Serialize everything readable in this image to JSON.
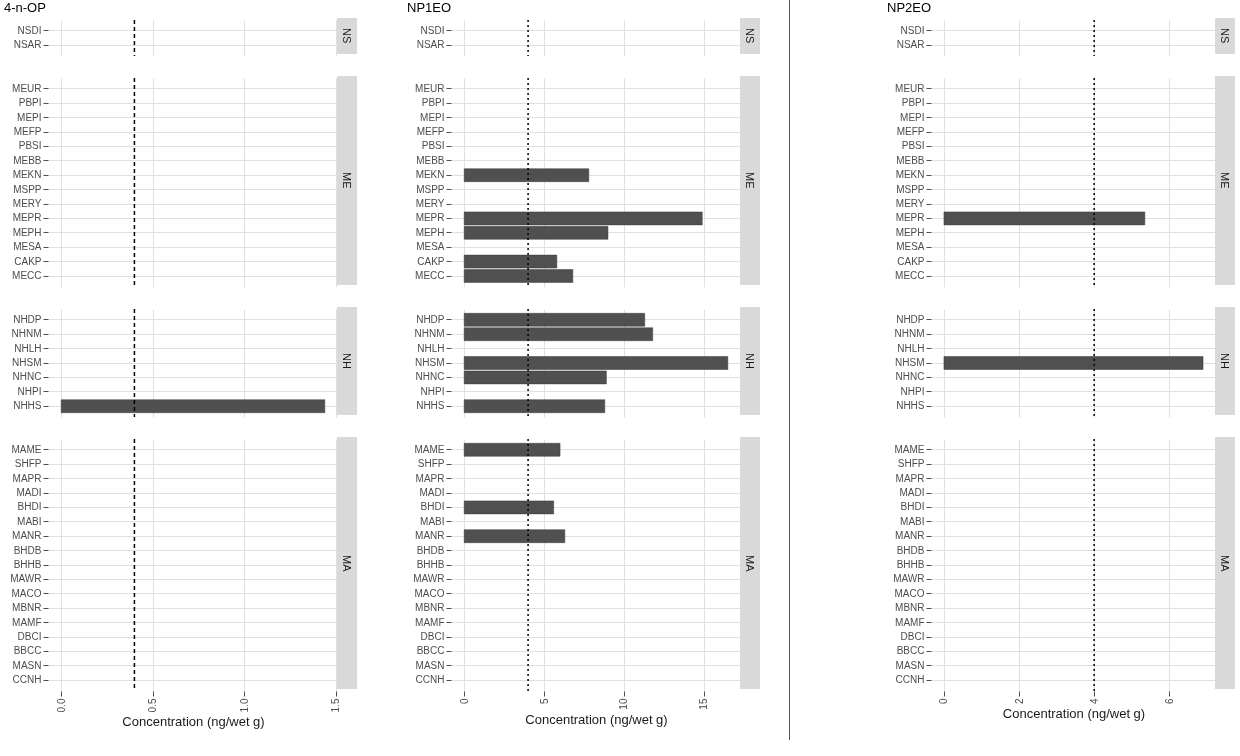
{
  "chart_data": [
    {
      "type": "bar",
      "orientation": "horizontal",
      "title": "4-n-OP",
      "categories": [
        "NSDI",
        "NSAR"
      ],
      "values": [
        null,
        null
      ],
      "color": "#505050",
      "xlim": [
        -0.072,
        1.512
      ],
      "xticks": [
        0,
        0.5,
        1,
        1.5
      ],
      "ref_lines": [
        {
          "axis": "x",
          "value": 0.4,
          "line_style": "dashed"
        }
      ],
      "grid": true,
      "tick_labels": "y",
      "annotations": [
        "NS"
      ]
    },
    {
      "type": "bar",
      "orientation": "horizontal",
      "categories": [
        "MEUR",
        "PBPI",
        "MEPI",
        "MEFP",
        "PBSI",
        "MEBB",
        "MEKN",
        "MSPP",
        "MERY",
        "MEPR",
        "MEPH",
        "MESA",
        "CAKP",
        "MECC"
      ],
      "values": [
        null,
        null,
        null,
        null,
        null,
        null,
        null,
        null,
        null,
        null,
        null,
        null,
        null,
        null
      ],
      "color": "#505050",
      "xlim": [
        -0.072,
        1.512
      ],
      "xticks": [
        0,
        0.5,
        1,
        1.5
      ],
      "ref_lines": [
        {
          "axis": "x",
          "value": 0.4,
          "line_style": "dashed"
        }
      ],
      "grid": true,
      "tick_labels": "y",
      "annotations": [
        "ME"
      ]
    },
    {
      "type": "bar",
      "orientation": "horizontal",
      "categories": [
        "NHDP",
        "NHNM",
        "NHLH",
        "NHSM",
        "NHNC",
        "NHPI",
        "NHHS"
      ],
      "values": [
        null,
        null,
        null,
        null,
        null,
        null,
        1.44
      ],
      "color": "#505050",
      "xlim": [
        -0.072,
        1.512
      ],
      "xticks": [
        0,
        0.5,
        1,
        1.5
      ],
      "ref_lines": [
        {
          "axis": "x",
          "value": 0.4,
          "line_style": "dashed"
        }
      ],
      "grid": true,
      "tick_labels": "y",
      "annotations": [
        "NH"
      ]
    },
    {
      "type": "bar",
      "orientation": "horizontal",
      "xlabel": "Concentration (ng/wet g)",
      "categories": [
        "MAME",
        "SHFP",
        "MAPR",
        "MADI",
        "BHDI",
        "MABI",
        "MANR",
        "BHDB",
        "BHHB",
        "MAWR",
        "MACO",
        "MBNR",
        "MAMF",
        "DBCI",
        "BBCC",
        "MASN",
        "CCNH"
      ],
      "values": [
        null,
        null,
        null,
        null,
        null,
        null,
        null,
        null,
        null,
        null,
        null,
        null,
        null,
        null,
        null,
        null,
        null
      ],
      "color": "#505050",
      "xlim": [
        -0.072,
        1.512
      ],
      "xticks": [
        {
          "value": 0,
          "label": "0.0"
        },
        {
          "value": 0.5,
          "label": "0.5"
        },
        {
          "value": 1,
          "label": "1.0"
        },
        {
          "value": 1.5,
          "label": "1.5"
        }
      ],
      "ref_lines": [
        {
          "axis": "x",
          "value": 0.4,
          "line_style": "dashed"
        }
      ],
      "grid": true,
      "annotations": [
        "MA"
      ]
    },
    {
      "type": "bar",
      "orientation": "horizontal",
      "title": "NP1EO",
      "categories": [
        "NSDI",
        "NSAR"
      ],
      "values": [
        null,
        null
      ],
      "color": "#505050",
      "xlim": [
        -0.825,
        17.325
      ],
      "xticks": [
        0,
        5,
        10,
        15
      ],
      "ref_lines": [
        {
          "axis": "x",
          "value": 4,
          "line_style": "dotted"
        }
      ],
      "grid": true,
      "tick_labels": "y",
      "annotations": [
        "NS"
      ]
    },
    {
      "type": "bar",
      "orientation": "horizontal",
      "categories": [
        "MEUR",
        "PBPI",
        "MEPI",
        "MEFP",
        "PBSI",
        "MEBB",
        "MEKN",
        "MSPP",
        "MERY",
        "MEPR",
        "MEPH",
        "MESA",
        "CAKP",
        "MECC"
      ],
      "values": [
        null,
        null,
        null,
        null,
        null,
        null,
        7.8,
        null,
        null,
        14.9,
        9.0,
        null,
        5.8,
        6.8
      ],
      "color": "#505050",
      "xlim": [
        -0.825,
        17.325
      ],
      "xticks": [
        0,
        5,
        10,
        15
      ],
      "ref_lines": [
        {
          "axis": "x",
          "value": 4,
          "line_style": "dotted"
        }
      ],
      "grid": true,
      "tick_labels": "y",
      "annotations": [
        "ME"
      ]
    },
    {
      "type": "bar",
      "orientation": "horizontal",
      "categories": [
        "NHDP",
        "NHNM",
        "NHLH",
        "NHSM",
        "NHNC",
        "NHPI",
        "NHHS"
      ],
      "values": [
        11.3,
        11.8,
        null,
        16.5,
        8.9,
        null,
        8.8
      ],
      "color": "#505050",
      "xlim": [
        -0.825,
        17.325
      ],
      "xticks": [
        0,
        5,
        10,
        15
      ],
      "ref_lines": [
        {
          "axis": "x",
          "value": 4,
          "line_style": "dotted"
        }
      ],
      "grid": true,
      "tick_labels": "y",
      "annotations": [
        "NH"
      ]
    },
    {
      "type": "bar",
      "orientation": "horizontal",
      "xlabel": "Concentration (ng/wet g)",
      "categories": [
        "MAME",
        "SHFP",
        "MAPR",
        "MADI",
        "BHDI",
        "MABI",
        "MANR",
        "BHDB",
        "BHHB",
        "MAWR",
        "MACO",
        "MBNR",
        "MAMF",
        "DBCI",
        "BBCC",
        "MASN",
        "CCNH"
      ],
      "values": [
        6.0,
        null,
        null,
        null,
        5.6,
        null,
        6.3,
        null,
        null,
        null,
        null,
        null,
        null,
        null,
        null,
        null,
        null
      ],
      "color": "#505050",
      "xlim": [
        -0.825,
        17.325
      ],
      "xticks": [
        0,
        5,
        10,
        15
      ],
      "ref_lines": [
        {
          "axis": "x",
          "value": 4,
          "line_style": "dotted"
        }
      ],
      "grid": true,
      "annotations": [
        "MA"
      ]
    },
    {
      "type": "bar",
      "orientation": "horizontal",
      "title": "NP2EO",
      "categories": [
        "NSDI",
        "NSAR"
      ],
      "values": [
        null,
        null
      ],
      "color": "#505050",
      "xlim": [
        -0.345,
        7.245
      ],
      "xticks": [
        0,
        2,
        4,
        6
      ],
      "ref_lines": [
        {
          "axis": "x",
          "value": 4,
          "line_style": "dotted"
        }
      ],
      "grid": true,
      "tick_labels": "y",
      "annotations": [
        "NS"
      ]
    },
    {
      "type": "bar",
      "orientation": "horizontal",
      "categories": [
        "MEUR",
        "PBPI",
        "MEPI",
        "MEFP",
        "PBSI",
        "MEBB",
        "MEKN",
        "MSPP",
        "MERY",
        "MEPR",
        "MEPH",
        "MESA",
        "CAKP",
        "MECC"
      ],
      "values": [
        null,
        null,
        null,
        null,
        null,
        null,
        null,
        null,
        null,
        5.35,
        null,
        null,
        null,
        null
      ],
      "color": "#505050",
      "xlim": [
        -0.345,
        7.245
      ],
      "xticks": [
        0,
        2,
        4,
        6
      ],
      "ref_lines": [
        {
          "axis": "x",
          "value": 4,
          "line_style": "dotted"
        }
      ],
      "grid": true,
      "tick_labels": "y",
      "annotations": [
        "ME"
      ]
    },
    {
      "type": "bar",
      "orientation": "horizontal",
      "categories": [
        "NHDP",
        "NHNM",
        "NHLH",
        "NHSM",
        "NHNC",
        "NHPI",
        "NHHS"
      ],
      "values": [
        null,
        null,
        null,
        6.9,
        null,
        null,
        null
      ],
      "color": "#505050",
      "xlim": [
        -0.345,
        7.245
      ],
      "xticks": [
        0,
        2,
        4,
        6
      ],
      "ref_lines": [
        {
          "axis": "x",
          "value": 4,
          "line_style": "dotted"
        }
      ],
      "grid": true,
      "tick_labels": "y",
      "annotations": [
        "NH"
      ]
    },
    {
      "type": "bar",
      "orientation": "horizontal",
      "xlabel": "Concentration (ng/wet g)",
      "categories": [
        "MAME",
        "SHFP",
        "MAPR",
        "MADI",
        "BHDI",
        "MABI",
        "MANR",
        "BHDB",
        "BHHB",
        "MAWR",
        "MACO",
        "MBNR",
        "MAMF",
        "DBCI",
        "BBCC",
        "MASN",
        "CCNH"
      ],
      "values": [
        null,
        null,
        null,
        null,
        null,
        null,
        null,
        null,
        null,
        null,
        null,
        null,
        null,
        null,
        null,
        null,
        null
      ],
      "color": "#505050",
      "xlim": [
        -0.345,
        7.245
      ],
      "xticks": [
        0,
        2,
        4,
        6
      ],
      "ref_lines": [
        {
          "axis": "x",
          "value": 4,
          "line_style": "dotted"
        }
      ],
      "grid": true,
      "annotations": [
        "MA"
      ]
    }
  ]
}
